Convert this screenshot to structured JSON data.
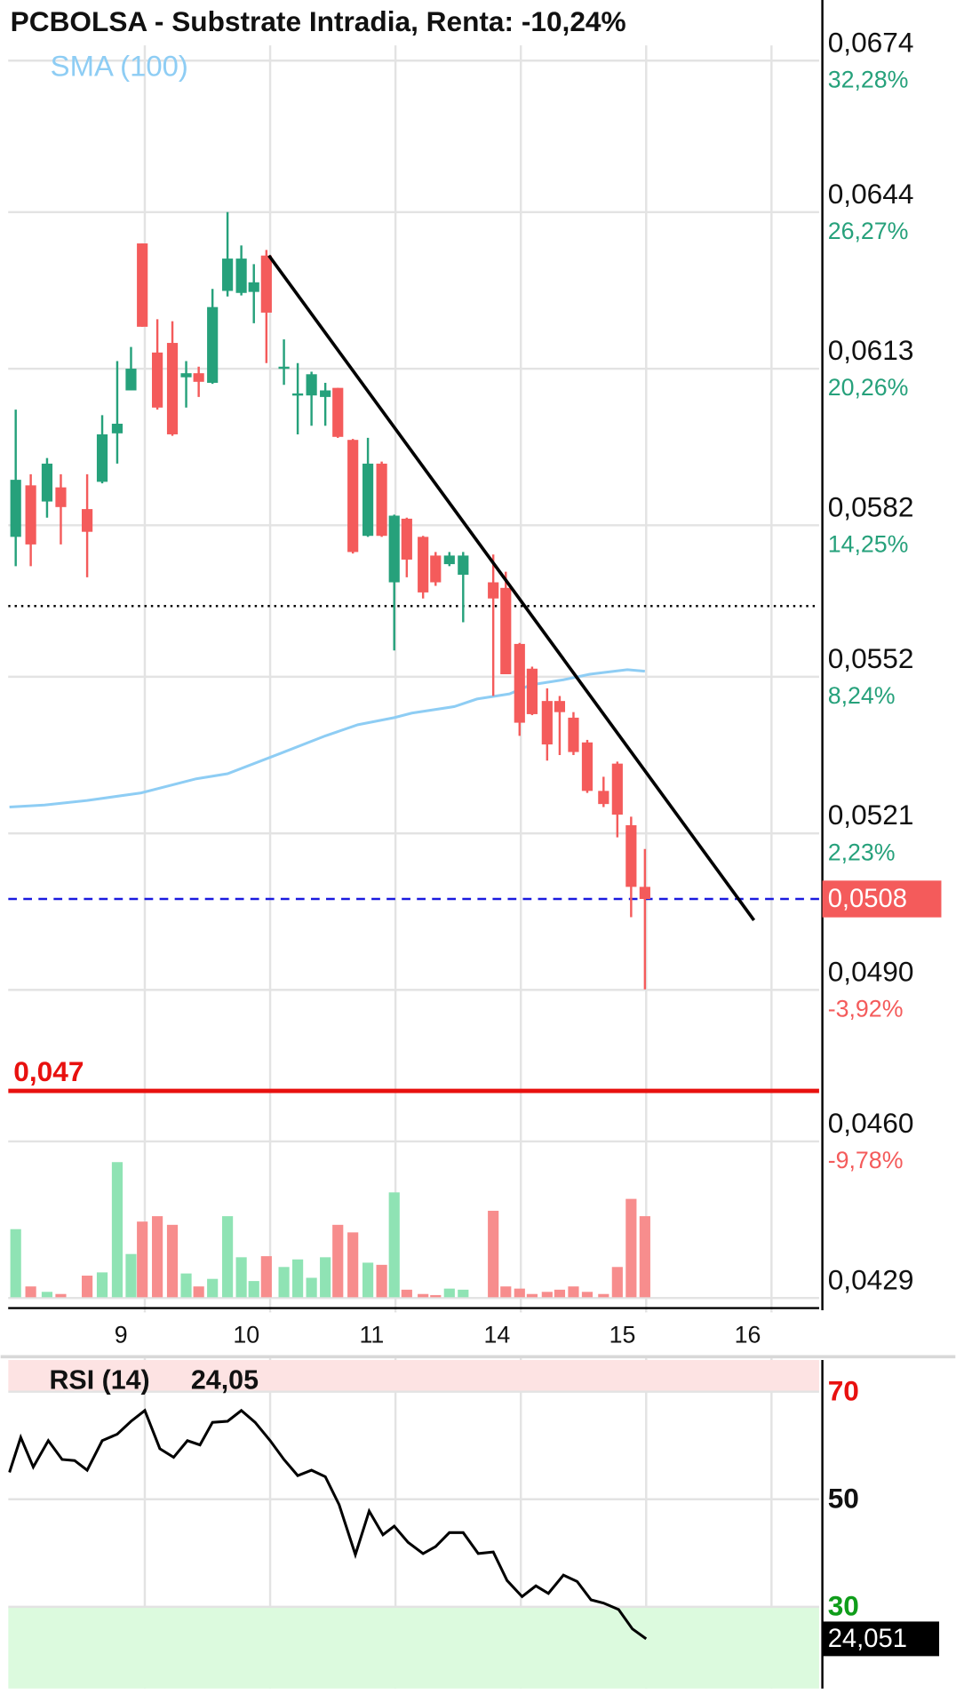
{
  "chart_data": [
    {
      "type": "candlestick",
      "title": "PCBOLSA - Substrate Intradia, Renta: -10,24%",
      "x": [
        -1.03,
        -0.91,
        -0.78,
        -0.67,
        -0.46,
        -0.34,
        -0.22,
        -0.11,
        -0.02,
        0.1,
        0.22,
        0.33,
        0.43,
        0.54,
        0.66,
        0.77,
        0.87,
        0.97,
        1.11,
        1.22,
        1.33,
        1.44,
        1.54,
        1.66,
        1.78,
        1.89,
        1.99,
        2.09,
        2.22,
        2.32,
        2.43,
        2.54,
        2.78,
        2.88,
        2.99,
        3.09,
        3.21,
        3.31,
        3.42,
        3.53,
        3.66,
        3.77,
        3.88,
        3.99
      ],
      "open": [
        0.05797,
        0.05899,
        0.05867,
        0.05895,
        0.05852,
        0.05906,
        0.06002,
        0.06087,
        0.06378,
        0.06162,
        0.06181,
        0.06113,
        0.06121,
        0.06102,
        0.06284,
        0.0628,
        0.06282,
        0.06354,
        0.0613,
        0.06077,
        0.06077,
        0.06074,
        0.06092,
        0.05989,
        0.05799,
        0.05942,
        0.05707,
        0.05833,
        0.05797,
        0.0576,
        0.05743,
        0.05722,
        0.05707,
        0.05696,
        0.05585,
        0.05536,
        0.05472,
        0.05472,
        0.05439,
        0.0539,
        0.05294,
        0.05348,
        0.05226,
        0.05104
      ],
      "high": [
        0.06049,
        0.05921,
        0.05953,
        0.05921,
        0.05921,
        0.06038,
        0.06145,
        0.06173,
        0.06378,
        0.06228,
        0.06224,
        0.06145,
        0.06134,
        0.06288,
        0.0644,
        0.06374,
        0.06337,
        0.06365,
        0.06188,
        0.06141,
        0.06124,
        0.06102,
        0.06092,
        0.05991,
        0.05993,
        0.05946,
        0.05841,
        0.05835,
        0.05799,
        0.05767,
        0.05767,
        0.05767,
        0.05762,
        0.05728,
        0.05587,
        0.0554,
        0.05497,
        0.05482,
        0.0545,
        0.05395,
        0.05322,
        0.05352,
        0.05243,
        0.05179
      ],
      "low": [
        0.05739,
        0.05739,
        0.05835,
        0.05782,
        0.05717,
        0.05903,
        0.05942,
        0.06087,
        0.06213,
        0.06049,
        0.05997,
        0.06053,
        0.06074,
        0.061,
        0.06273,
        0.06275,
        0.0622,
        0.06141,
        0.06098,
        0.06,
        0.06017,
        0.06017,
        0.05993,
        0.05764,
        0.05797,
        0.05797,
        0.05572,
        0.05717,
        0.05675,
        0.057,
        0.05739,
        0.05628,
        0.05482,
        0.05525,
        0.05403,
        0.05444,
        0.05354,
        0.05365,
        0.05365,
        0.0529,
        0.05262,
        0.05202,
        0.05044,
        0.04901
      ],
      "close": [
        0.0591,
        0.05782,
        0.05942,
        0.05856,
        0.05807,
        0.06,
        0.06021,
        0.0613,
        0.06213,
        0.06053,
        0.06,
        0.06121,
        0.06104,
        0.06252,
        0.06348,
        0.06348,
        0.06301,
        0.06241,
        0.06134,
        0.06081,
        0.06119,
        0.06087,
        0.05995,
        0.05767,
        0.05942,
        0.05799,
        0.05839,
        0.05752,
        0.05687,
        0.05707,
        0.0576,
        0.0576,
        0.05675,
        0.05525,
        0.05429,
        0.05446,
        0.05386,
        0.0545,
        0.05371,
        0.05294,
        0.05268,
        0.05247,
        0.05104,
        0.0508
      ],
      "volume": [
        63,
        10,
        5,
        3,
        20,
        23,
        125,
        40,
        70,
        75,
        67,
        22,
        10,
        17,
        75,
        37,
        15,
        38,
        28,
        35,
        18,
        37,
        67,
        60,
        32,
        30,
        97,
        7,
        3,
        2,
        8,
        7,
        80,
        10,
        8,
        3,
        5,
        7,
        10,
        5,
        3,
        28,
        91,
        75
      ],
      "up_color": "#26a17b",
      "down_color": "#f45b5b",
      "volume_up_color": "#8fe3b4",
      "volume_down_color": "#f78d8d",
      "sma": {
        "name": "SMA (100)",
        "color": "#8ecdf4",
        "x": [
          -1.08,
          -0.8,
          -0.46,
          -0.03,
          0.41,
          0.66,
          1.09,
          1.44,
          1.7,
          1.99,
          2.13,
          2.47,
          2.65,
          2.91,
          3.08,
          3.34,
          3.55,
          3.68,
          3.85,
          3.99
        ],
        "values": [
          0.05262,
          0.05266,
          0.05275,
          0.0529,
          0.05318,
          0.05328,
          0.05369,
          0.05403,
          0.05425,
          0.05439,
          0.05448,
          0.05461,
          0.05476,
          0.05486,
          0.05504,
          0.05514,
          0.05525,
          0.05529,
          0.05534,
          0.05531
        ]
      },
      "trendline": {
        "x": [
          0.99,
          4.86
        ],
        "y": [
          0.06354,
          0.05038
        ],
        "color": "#000000"
      },
      "levels": [
        {
          "value": 0.0566,
          "style": "dotted",
          "color": "#000000"
        },
        {
          "value": 0.0508,
          "label": "0,0508",
          "style": "dashed",
          "color": "#1a1adf",
          "tag": "axis"
        },
        {
          "value": 0.047,
          "label": "0,047",
          "style": "solid",
          "color": "#e8110f",
          "tag": "chart"
        }
      ],
      "xlim": [
        -1.09,
        5.38
      ],
      "xticks": [
        {
          "value": 0,
          "label": "9"
        },
        {
          "value": 1,
          "label": "10"
        },
        {
          "value": 2,
          "label": "11"
        },
        {
          "value": 3,
          "label": "14"
        },
        {
          "value": 4,
          "label": "15"
        },
        {
          "value": 5,
          "label": "16"
        }
      ],
      "ylim": [
        0.0427,
        0.0686
      ],
      "yticks": [
        {
          "value": 0.0674,
          "label": "0,0674"
        },
        {
          "value": 0.0644,
          "label": "0,0644"
        },
        {
          "value": 0.0613,
          "label": "0,0613"
        },
        {
          "value": 0.0582,
          "label": "0,0582"
        },
        {
          "value": 0.0552,
          "label": "0,0552"
        },
        {
          "value": 0.0521,
          "label": "0,0521"
        },
        {
          "value": 0.049,
          "label": "0,0490"
        },
        {
          "value": 0.046,
          "label": "0,0460"
        },
        {
          "value": 0.0429,
          "label": "0,0429"
        }
      ],
      "ytick_changes": [
        "32,28%",
        "26,27%",
        "20,26%",
        "14,25%",
        "8,24%",
        "2,23%",
        "-3,92%",
        "-9,78%"
      ],
      "grid": true
    },
    {
      "type": "line",
      "title": "RSI (14)",
      "value_label": "24,05",
      "last_label": "24,051",
      "color": "#000000",
      "x": [
        -1.08,
        -0.99,
        -0.89,
        -0.77,
        -0.66,
        -0.56,
        -0.46,
        -0.34,
        -0.22,
        -0.11,
        0.0,
        0.12,
        0.23,
        0.34,
        0.44,
        0.54,
        0.66,
        0.77,
        0.88,
        1.0,
        1.11,
        1.22,
        1.33,
        1.44,
        1.55,
        1.68,
        1.79,
        1.9,
        1.99,
        2.1,
        2.22,
        2.32,
        2.43,
        2.54,
        2.66,
        2.78,
        2.89,
        3.01,
        3.12,
        3.22,
        3.34,
        3.45,
        3.56,
        3.66,
        3.78,
        3.89,
        4.0
      ],
      "values": [
        55.0,
        61.5,
        56.0,
        60.9,
        57.4,
        57.2,
        55.4,
        60.9,
        62.1,
        64.5,
        66.5,
        59.4,
        57.8,
        60.9,
        60.1,
        64.3,
        64.5,
        66.5,
        64.3,
        60.9,
        57.4,
        54.4,
        55.4,
        54.2,
        49.0,
        39.7,
        47.8,
        43.4,
        45.0,
        42.0,
        39.9,
        41.2,
        43.8,
        43.8,
        39.9,
        40.2,
        34.9,
        31.9,
        33.9,
        32.5,
        35.9,
        34.7,
        31.3,
        30.7,
        29.5,
        25.9,
        24.051
      ],
      "xlim": [
        -1.09,
        5.38
      ],
      "ylim": [
        14.8,
        75.9
      ],
      "yticks": [
        70,
        50,
        30
      ],
      "overbought": 70,
      "oversold": 30,
      "overbought_color": "#fde3e3",
      "oversold_color": "#dcfade",
      "high_color": "#e8110f",
      "low_color": "#0f9d1a",
      "grid": true
    }
  ]
}
